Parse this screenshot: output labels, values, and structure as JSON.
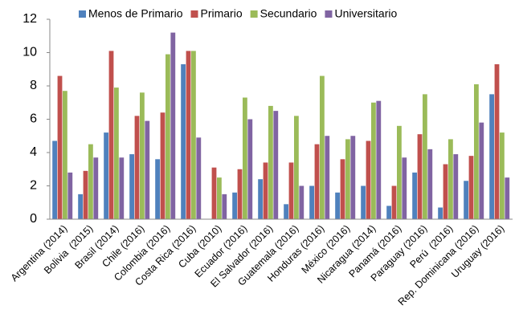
{
  "chart_data": {
    "type": "bar",
    "categories": [
      "Argentina (2014)",
      "Bolivia  (2015)",
      "Brasil (2014)",
      "Chile (2016)",
      "Colombia (2016)",
      "Costa Rica (2016)",
      "Cuba (2010)",
      "Ecuador (2016)",
      "El Salvador (2016)",
      "Guatemala (2016)",
      "Honduras (2016)",
      "México (2016)",
      "Nicaragua (2014)",
      "Panamá (2016)",
      "Paraguay (2016)",
      "Perú  (2016)",
      "Rep. Dominicana (2016)",
      "Uruguay (2016)"
    ],
    "series": [
      {
        "name": "Menos de Primario",
        "color": "#4f81bd",
        "values": [
          4.7,
          1.5,
          5.2,
          3.9,
          3.6,
          9.3,
          0,
          1.6,
          2.4,
          0.9,
          2.0,
          1.6,
          2.0,
          0.8,
          2.8,
          0.7,
          2.3,
          7.5
        ]
      },
      {
        "name": "Primario",
        "color": "#c0504d",
        "values": [
          8.6,
          2.9,
          10.1,
          6.2,
          6.4,
          10.1,
          3.1,
          3.0,
          3.4,
          3.4,
          4.5,
          3.6,
          4.7,
          2.0,
          5.1,
          3.3,
          3.8,
          9.3
        ]
      },
      {
        "name": "Secundario",
        "color": "#9bbb59",
        "values": [
          7.7,
          4.5,
          7.9,
          7.6,
          9.9,
          10.1,
          2.5,
          7.3,
          6.8,
          6.2,
          8.6,
          4.8,
          7.0,
          5.6,
          7.5,
          4.8,
          8.1,
          5.2
        ]
      },
      {
        "name": "Universitario",
        "color": "#8064a2",
        "values": [
          2.8,
          3.7,
          3.7,
          5.9,
          11.2,
          4.9,
          1.5,
          6.0,
          6.5,
          2.0,
          5.0,
          5.0,
          7.1,
          3.7,
          4.2,
          3.9,
          5.8,
          2.5
        ]
      }
    ],
    "ylim": [
      0,
      12
    ],
    "yticks": [
      0,
      2,
      4,
      6,
      8,
      10,
      12
    ],
    "grid": false,
    "legend": "top"
  }
}
